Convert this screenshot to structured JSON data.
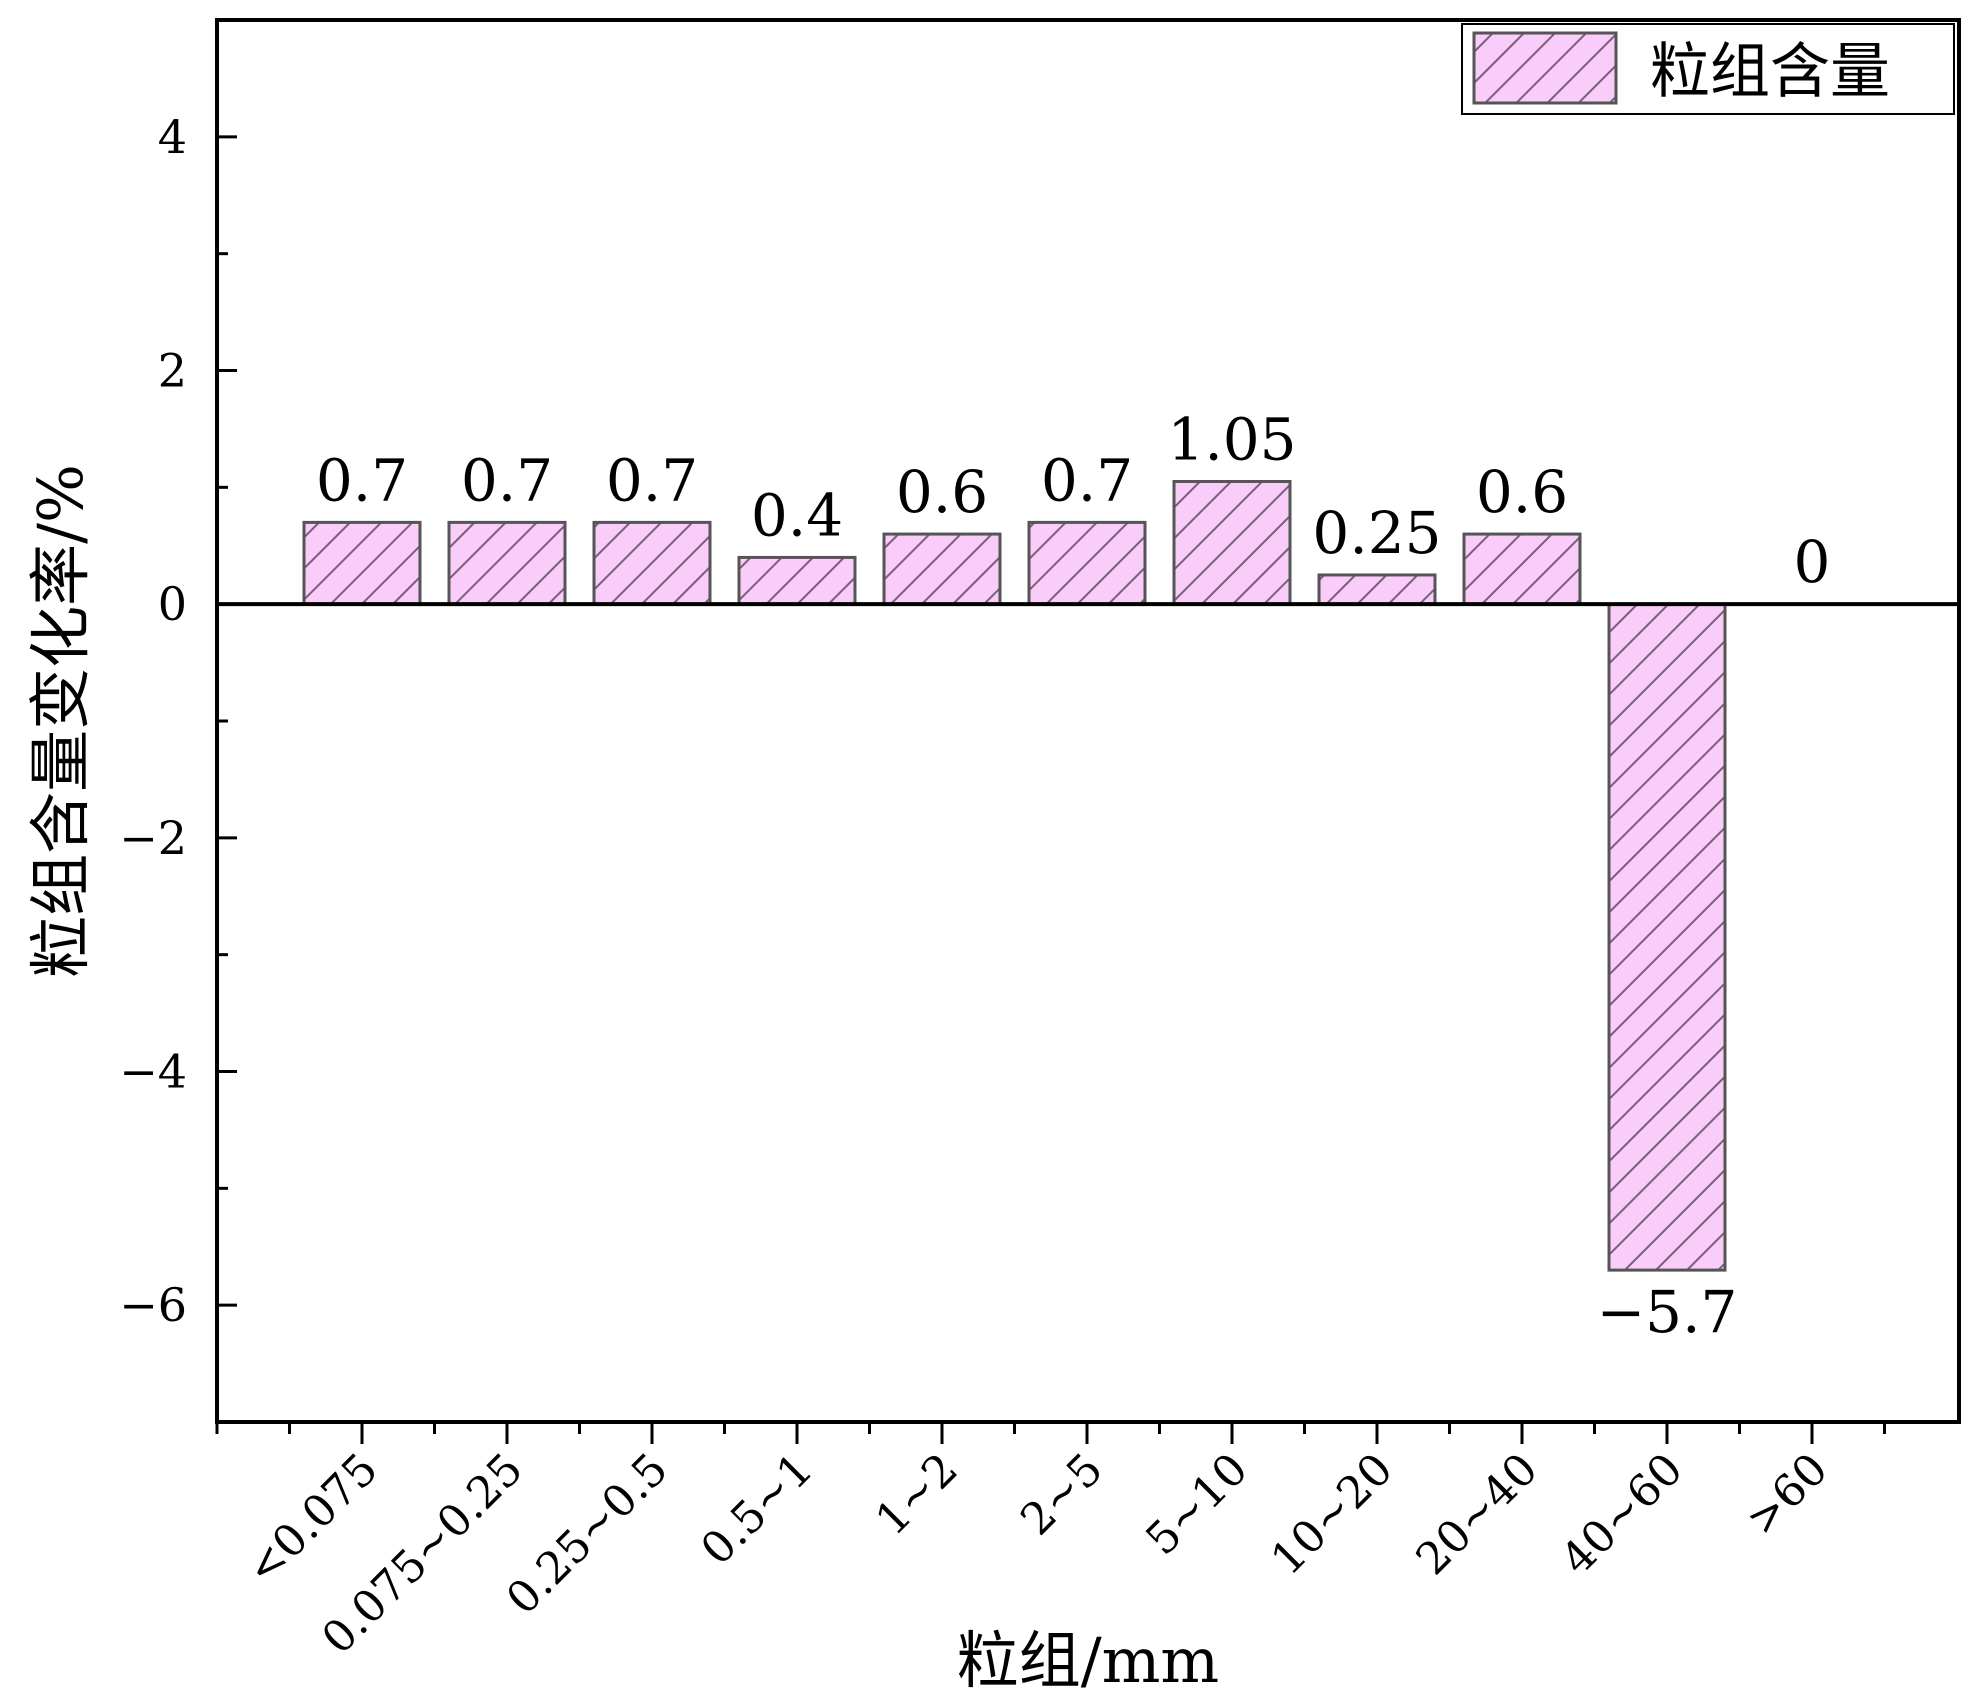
{
  "chart_data": {
    "type": "bar",
    "xlabel": "粒组/mm",
    "ylabel": "粒组含量变化率/%",
    "ylim": [
      -7,
      5
    ],
    "yticks": [
      -6,
      -4,
      -2,
      0,
      2,
      4
    ],
    "ytick_labels": [
      "−6",
      "−4",
      "−2",
      "0",
      "2",
      "4"
    ],
    "categories": [
      "<0.075",
      "0.075~0.25",
      "0.25~0.5",
      "0.5~1",
      "1~2",
      "2~5",
      "5~10",
      "10~20",
      "20~40",
      "40~60",
      ">60"
    ],
    "series": [
      {
        "name": "粒组含量",
        "values": [
          0.7,
          0.7,
          0.7,
          0.4,
          0.6,
          0.7,
          1.05,
          0.25,
          0.6,
          -5.7,
          0
        ],
        "value_labels": [
          "0.7",
          "0.7",
          "0.7",
          "0.4",
          "0.6",
          "0.7",
          "1.05",
          "0.25",
          "0.6",
          "−5.7",
          "0"
        ]
      }
    ],
    "legend_position": "top-right",
    "grid": false,
    "bar_fill": "#f9ccf9",
    "bar_hatch": "#7a5f7a",
    "bar_edge": "#555555"
  }
}
